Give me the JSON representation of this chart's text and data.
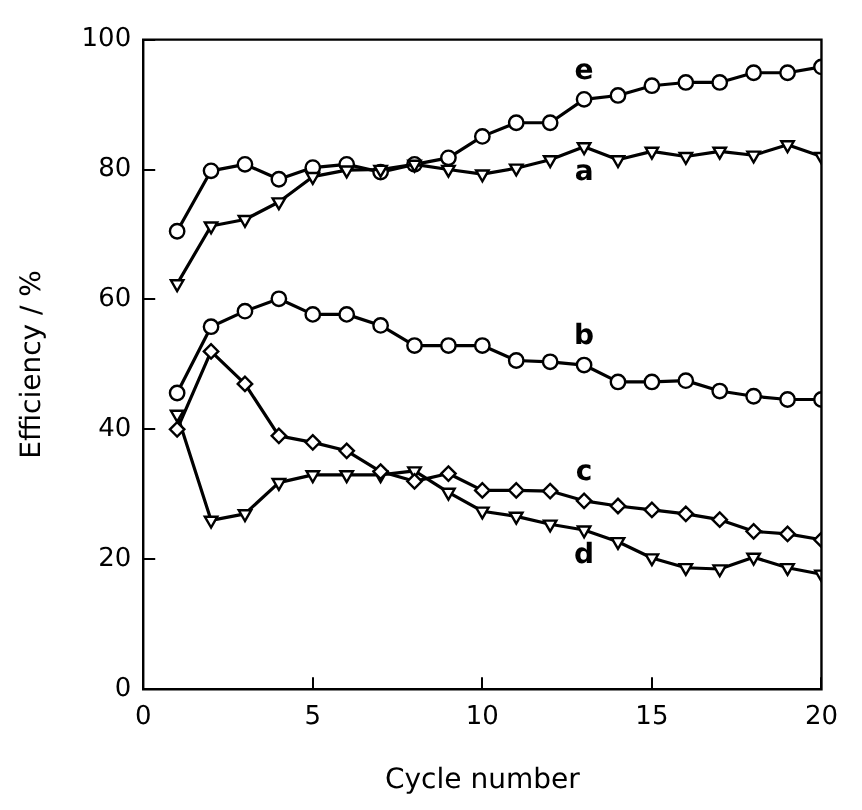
{
  "chart_data": {
    "type": "line",
    "xlabel": "Cycle number",
    "ylabel": "Efficiency / %",
    "x": [
      1,
      2,
      3,
      4,
      5,
      6,
      7,
      8,
      9,
      10,
      11,
      12,
      13,
      14,
      15,
      16,
      17,
      18,
      19,
      20
    ],
    "xlim": [
      0,
      20
    ],
    "xticks": [
      0,
      5,
      10,
      15,
      20
    ],
    "ylim": [
      0,
      100
    ],
    "yticks": [
      0,
      20,
      40,
      60,
      80,
      100
    ],
    "grid": false,
    "legend": false,
    "line_style": "solid",
    "series": [
      {
        "name": "a",
        "color": "#000000",
        "marker": "triangle",
        "values": [
          62.4,
          71.3,
          72.3,
          75,
          78.9,
          79.9,
          80,
          80.8,
          80,
          79.3,
          80.2,
          81.5,
          83.5,
          81.5,
          82.8,
          82,
          82.8,
          82.2,
          83.8,
          82
        ]
      },
      {
        "name": "b",
        "color": "#000000",
        "marker": "circle",
        "values": [
          45.6,
          55.8,
          58.2,
          60.1,
          57.7,
          57.7,
          56,
          52.9,
          52.9,
          52.9,
          50.6,
          50.4,
          49.9,
          47.3,
          47.3,
          47.5,
          45.9,
          45.1,
          44.6,
          44.6
        ]
      },
      {
        "name": "c",
        "color": "#000000",
        "marker": "diamond",
        "values": [
          40,
          52,
          47,
          39,
          38,
          36.7,
          33.5,
          32,
          33.2,
          30.6,
          30.6,
          30.5,
          29,
          28.2,
          27.6,
          27,
          26.1,
          24.3,
          23.9,
          23
        ]
      },
      {
        "name": "d",
        "color": "#000000",
        "marker": "triangle",
        "values": [
          42.3,
          26,
          27,
          31.8,
          33,
          33,
          33,
          33.6,
          30.3,
          27.4,
          26.6,
          25.4,
          24.5,
          22.7,
          20.2,
          18.7,
          18.5,
          20.3,
          18.7,
          17.7
        ]
      },
      {
        "name": "e",
        "color": "#000000",
        "marker": "circle",
        "values": [
          70.5,
          79.8,
          80.8,
          78.5,
          80.3,
          80.8,
          79.6,
          80.8,
          81.8,
          85.1,
          87.2,
          87.2,
          90.8,
          91.4,
          92.9,
          93.4,
          93.4,
          94.9,
          94.9,
          95.8
        ]
      }
    ]
  }
}
